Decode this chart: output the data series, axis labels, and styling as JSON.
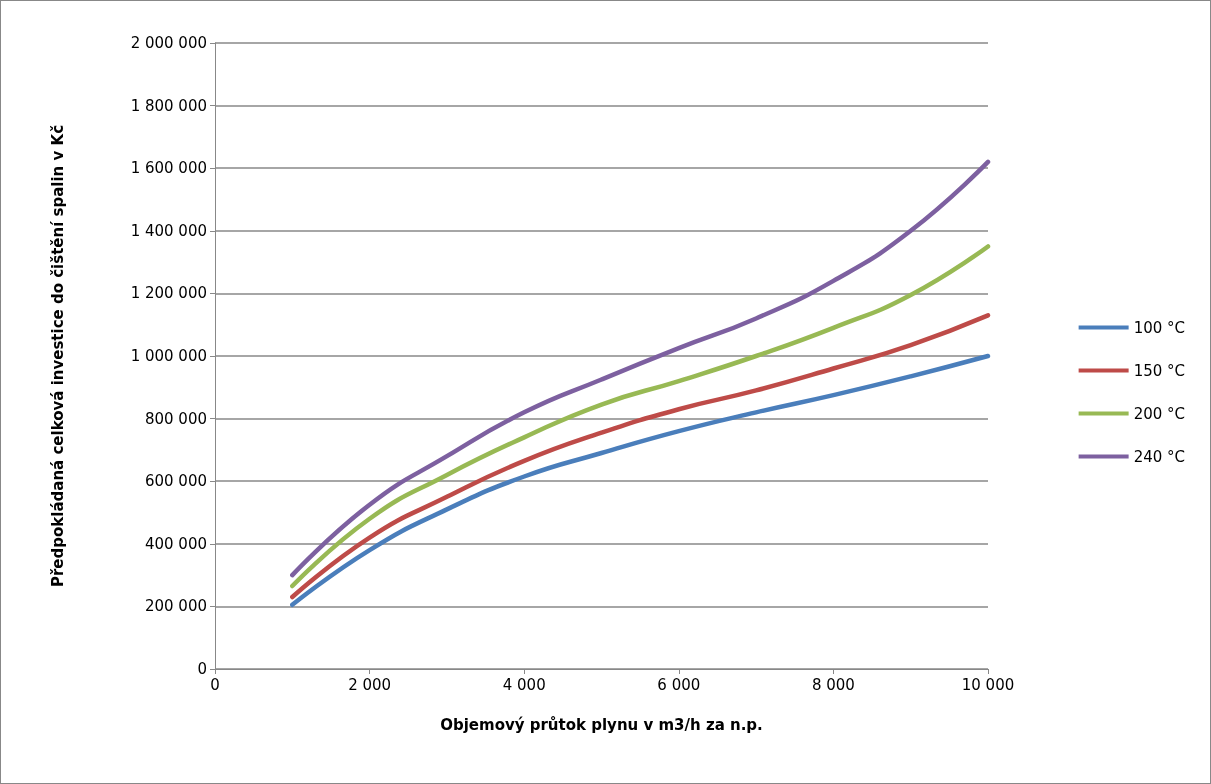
{
  "chart_data": {
    "type": "line",
    "xlabel": "Objemový průtok plynu v m3/h za n.p.",
    "ylabel": "Předpokládaná celková investice do čištění spalin v Kč",
    "x": [
      1000,
      2000,
      3000,
      4000,
      5000,
      6000,
      7000,
      8000,
      9000,
      10000
    ],
    "series": [
      {
        "name": "100 °C",
        "color": "#4a7ebb",
        "values": [
          205000,
          380000,
          510000,
          615000,
          690000,
          760000,
          820000,
          875000,
          935000,
          1000000
        ]
      },
      {
        "name": "150 °C",
        "color": "#be4b48",
        "values": [
          230000,
          420000,
          550000,
          665000,
          755000,
          830000,
          890000,
          960000,
          1035000,
          1130000
        ]
      },
      {
        "name": "200 °C",
        "color": "#98b954",
        "values": [
          265000,
          480000,
          620000,
          740000,
          845000,
          920000,
          1000000,
          1090000,
          1195000,
          1350000
        ]
      },
      {
        "name": "240 °C",
        "color": "#7d60a0",
        "values": [
          300000,
          525000,
          680000,
          820000,
          925000,
          1025000,
          1120000,
          1240000,
          1400000,
          1620000
        ]
      }
    ],
    "xlim": [
      0,
      10000
    ],
    "xticks": [
      0,
      {
        "value": 2000,
        "label": "2 000"
      },
      {
        "value": 4000,
        "label": "4 000"
      },
      {
        "value": 6000,
        "label": "6 000"
      },
      {
        "value": 8000,
        "label": "8 000"
      },
      {
        "value": 10000,
        "label": "10 000"
      }
    ],
    "ylim": [
      0,
      2000000
    ],
    "yticks": [
      0,
      {
        "value": 200000,
        "label": "200 000"
      },
      {
        "value": 400000,
        "label": "400 000"
      },
      {
        "value": 600000,
        "label": "600 000"
      },
      {
        "value": 800000,
        "label": "800 000"
      },
      {
        "value": 1000000,
        "label": "1 000 000"
      },
      {
        "value": 1200000,
        "label": "1 200 000"
      },
      {
        "value": 1400000,
        "label": "1 400 000"
      },
      {
        "value": 1600000,
        "label": "1 600 000"
      },
      {
        "value": 1800000,
        "label": "1 800 000"
      },
      {
        "value": 2000000,
        "label": "2 000 000"
      }
    ],
    "grid": "y",
    "legend": "right",
    "marker": "none",
    "line_style": "solid"
  }
}
